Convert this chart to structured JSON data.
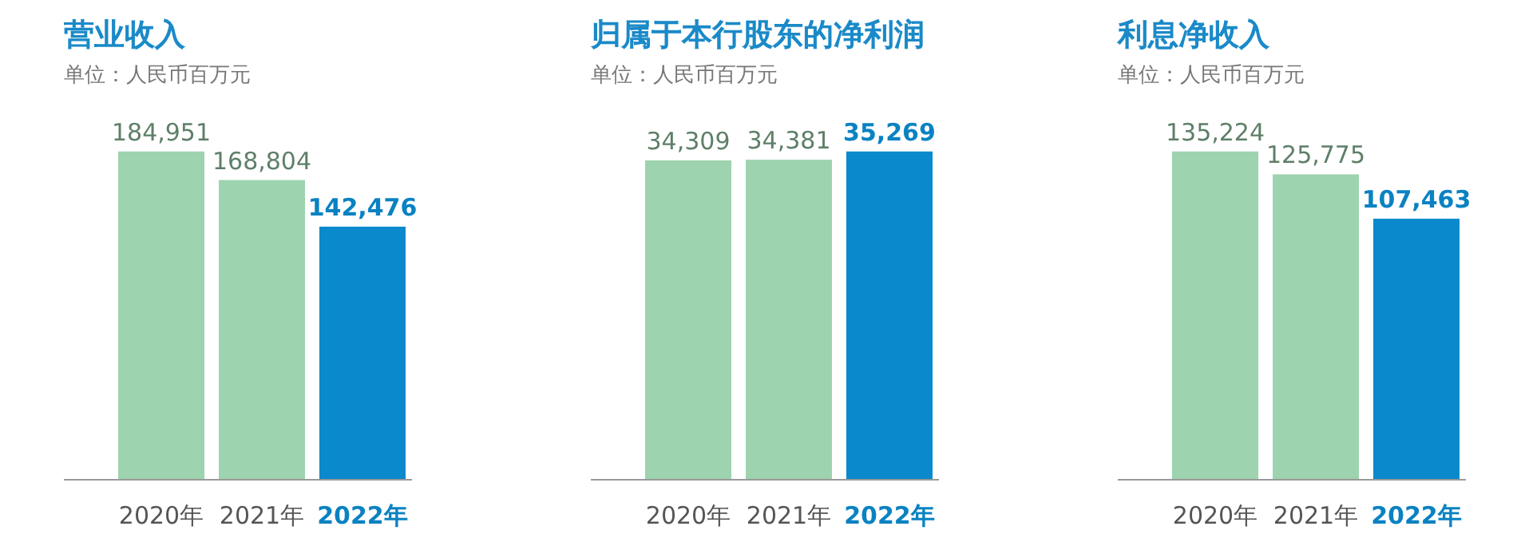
{
  "chart_data": [
    {
      "type": "bar",
      "title": "营业收入",
      "subtitle": "单位：人民币百万元",
      "categories": [
        "2020年",
        "2021年",
        "2022年"
      ],
      "values": [
        184951,
        168804,
        142476
      ],
      "value_labels": [
        "184,951",
        "168,804",
        "142,476"
      ],
      "colors": [
        "#9dd3ae",
        "#9dd3ae",
        "#0a89cc"
      ]
    },
    {
      "type": "bar",
      "title": "归属于本行股东的净利润",
      "subtitle": "单位：人民币百万元",
      "categories": [
        "2020年",
        "2021年",
        "2022年"
      ],
      "values": [
        34309,
        34381,
        35269
      ],
      "value_labels": [
        "34,309",
        "34,381",
        "35,269"
      ],
      "colors": [
        "#9dd3ae",
        "#9dd3ae",
        "#0a89cc"
      ]
    },
    {
      "type": "bar",
      "title": "利息净收入",
      "subtitle": "单位：人民币百万元",
      "categories": [
        "2020年",
        "2021年",
        "2022年"
      ],
      "values": [
        135224,
        125775,
        107463
      ],
      "value_labels": [
        "135,224",
        "125,775",
        "107,463"
      ],
      "colors": [
        "#9dd3ae",
        "#9dd3ae",
        "#0a89cc"
      ]
    }
  ]
}
